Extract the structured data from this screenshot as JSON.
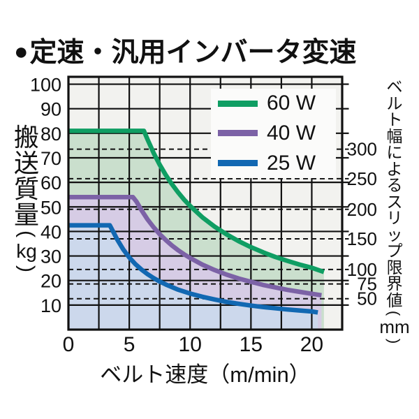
{
  "title": {
    "bullet": "●",
    "text": "定速・汎用インバータ変速"
  },
  "colors": {
    "text": "#111111",
    "grid": "#111111",
    "plot_bg": "#f2f2ef",
    "legend_bg": "#fbfbfa"
  },
  "chart_data": {
    "type": "area",
    "title": "定速・汎用インバータ変速",
    "xlabel": "ベルト速度（m/min）",
    "ylabel_left": {
      "text": "搬送質量",
      "unit": "kg"
    },
    "ylabel_right": {
      "text": "ベルト幅によるスリップ限界値",
      "unit": "mm"
    },
    "xlim": [
      0,
      22.5
    ],
    "ylim": [
      0,
      103
    ],
    "x_ticks": [
      0,
      5,
      10,
      15,
      20
    ],
    "x_grid_step": 2.5,
    "y_ticks_left": [
      10,
      20,
      30,
      40,
      50,
      60,
      70,
      80,
      90,
      100
    ],
    "right_axis_ticks": [
      {
        "label": "300",
        "kg": 73.5
      },
      {
        "label": "250",
        "kg": 61.5
      },
      {
        "label": "200",
        "kg": 49
      },
      {
        "label": "150",
        "kg": 37
      },
      {
        "label": "100",
        "kg": 24.5
      },
      {
        "label": "75",
        "kg": 18.6
      },
      {
        "label": "50",
        "kg": 12.6
      }
    ],
    "grid": true,
    "legend_position": "top-right",
    "series": [
      {
        "name": "60 W",
        "power_w": 60,
        "color": "#0f9e63",
        "fill": "#cadfcd",
        "flat_level_kg": 81,
        "points": [
          [
            0,
            81
          ],
          [
            6.2,
            81
          ],
          [
            6.5,
            77.5
          ],
          [
            7,
            72
          ],
          [
            7.5,
            67.2
          ],
          [
            8,
            63
          ],
          [
            8.5,
            59.3
          ],
          [
            9,
            56
          ],
          [
            9.5,
            53
          ],
          [
            10,
            50.4
          ],
          [
            11,
            45.8
          ],
          [
            12,
            42
          ],
          [
            13,
            38.8
          ],
          [
            14,
            36
          ],
          [
            15,
            33.6
          ],
          [
            16,
            31.5
          ],
          [
            17,
            29.6
          ],
          [
            18,
            28
          ],
          [
            19,
            26.5
          ],
          [
            20,
            25.2
          ],
          [
            21,
            23.5
          ]
        ]
      },
      {
        "name": "40 W",
        "power_w": 40,
        "color": "#7c62a6",
        "fill": "#d6cce5",
        "flat_level_kg": 54,
        "points": [
          [
            0,
            54
          ],
          [
            5.3,
            54
          ],
          [
            5.6,
            52.1
          ],
          [
            6,
            48.7
          ],
          [
            6.5,
            44.9
          ],
          [
            7,
            41.7
          ],
          [
            7.5,
            38.9
          ],
          [
            8,
            36.5
          ],
          [
            8.5,
            34.3
          ],
          [
            9,
            32.4
          ],
          [
            9.5,
            30.7
          ],
          [
            10,
            29.2
          ],
          [
            11,
            26.5
          ],
          [
            12,
            24.3
          ],
          [
            13,
            22.4
          ],
          [
            14,
            20.8
          ],
          [
            15,
            19.5
          ],
          [
            16,
            18.2
          ],
          [
            17,
            17.2
          ],
          [
            18,
            16.2
          ],
          [
            19,
            15.4
          ],
          [
            20,
            14.6
          ],
          [
            20.8,
            14
          ]
        ]
      },
      {
        "name": "25 W",
        "power_w": 25,
        "color": "#1268b2",
        "fill": "#ccd8ec",
        "flat_level_kg": 42.5,
        "points": [
          [
            0,
            42.5
          ],
          [
            3.4,
            42.5
          ],
          [
            3.7,
            39.7
          ],
          [
            4,
            36.8
          ],
          [
            4.5,
            32.7
          ],
          [
            5,
            29.4
          ],
          [
            5.5,
            26.7
          ],
          [
            6,
            24.5
          ],
          [
            6.5,
            22.6
          ],
          [
            7,
            21
          ],
          [
            7.5,
            19.6
          ],
          [
            8,
            18.4
          ],
          [
            9,
            16.3
          ],
          [
            10,
            14.7
          ],
          [
            11,
            13.4
          ],
          [
            12,
            12.3
          ],
          [
            13,
            11.3
          ],
          [
            14,
            10.5
          ],
          [
            15,
            9.8
          ],
          [
            16,
            9.2
          ],
          [
            17,
            8.7
          ],
          [
            18,
            8.2
          ],
          [
            19,
            7.8
          ],
          [
            20,
            7.4
          ],
          [
            20.5,
            7
          ]
        ]
      }
    ]
  }
}
